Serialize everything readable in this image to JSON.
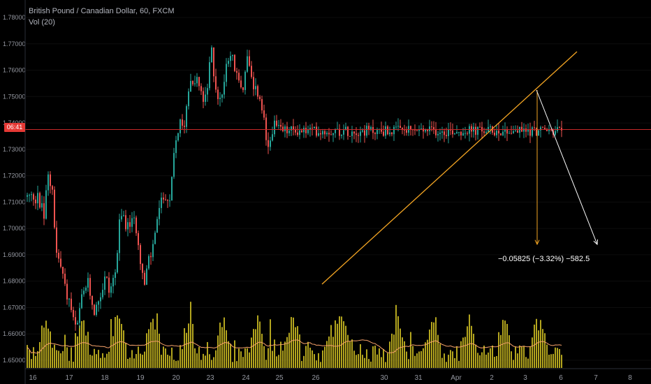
{
  "legend": {
    "symbol_line": "British Pound / Canadian Dollar, 60, FXCM",
    "volume_label": "Vol (20)"
  },
  "price_tag": "06:41",
  "measure_label": "−0.05825 (−3.32%) −582.5",
  "colors": {
    "background": "#000000",
    "up_candle": "#26a69a",
    "down_candle": "#ef5350",
    "volume_bar": "#b3a51e",
    "volume_ma": "#f7a26a",
    "trendline": "#f5a623",
    "price_line": "#c62828",
    "projection": "#ffffff",
    "axis_text": "#9598a1"
  },
  "chart_data": {
    "type": "candlestick",
    "instrument": "British Pound / Canadian Dollar",
    "timeframe": "60",
    "source": "FXCM",
    "y_axis": {
      "ticks": [
        "1.78000",
        "1.77000",
        "1.76000",
        "1.75000",
        "1.74000",
        "1.73000",
        "1.72000",
        "1.71000",
        "1.70000",
        "1.69000",
        "1.68000",
        "1.67000",
        "1.66000",
        "1.65000"
      ],
      "range": [
        1.648,
        1.783
      ]
    },
    "x_axis": {
      "ticks": [
        "16",
        "17",
        "18",
        "19",
        "20",
        "23",
        "24",
        "25",
        "26",
        "30",
        "31",
        "Apr",
        "2",
        "3",
        "6",
        "7",
        "8"
      ]
    },
    "current_price": 1.7375,
    "price_path": [
      [
        0,
        1.712
      ],
      [
        0.03,
        1.7
      ],
      [
        0.06,
        1.712
      ],
      [
        0.1,
        1.715
      ],
      [
        0.13,
        1.713
      ],
      [
        0.16,
        1.706
      ],
      [
        0.2,
        1.708
      ],
      [
        0.24,
        1.71
      ],
      [
        0.28,
        1.705
      ],
      [
        0.32,
        1.7
      ],
      [
        0.35,
        1.715
      ],
      [
        0.4,
        1.72
      ],
      [
        0.45,
        1.716
      ],
      [
        0.5,
        1.718
      ],
      [
        0.55,
        1.712
      ],
      [
        0.6,
        1.692
      ],
      [
        0.65,
        1.69
      ],
      [
        0.7,
        1.688
      ],
      [
        0.8,
        1.683
      ],
      [
        0.9,
        1.675
      ],
      [
        1.0,
        1.672
      ],
      [
        1.1,
        1.665
      ],
      [
        1.2,
        1.661
      ],
      [
        1.3,
        1.672
      ],
      [
        1.4,
        1.676
      ],
      [
        1.5,
        1.68
      ],
      [
        1.6,
        1.673
      ],
      [
        1.7,
        1.668
      ],
      [
        1.8,
        1.673
      ],
      [
        1.9,
        1.676
      ],
      [
        2.0,
        1.683
      ],
      [
        2.1,
        1.676
      ],
      [
        2.2,
        1.68
      ],
      [
        2.3,
        1.685
      ],
      [
        2.4,
        1.703
      ],
      [
        2.5,
        1.705
      ],
      [
        2.6,
        1.7
      ],
      [
        2.7,
        1.702
      ],
      [
        2.8,
        1.703
      ],
      [
        2.9,
        1.698
      ],
      [
        3.0,
        1.686
      ],
      [
        3.1,
        1.678
      ],
      [
        3.2,
        1.688
      ],
      [
        3.3,
        1.69
      ],
      [
        3.4,
        1.7
      ],
      [
        3.5,
        1.707
      ],
      [
        3.6,
        1.711
      ],
      [
        3.7,
        1.713
      ],
      [
        3.8,
        1.708
      ],
      [
        3.9,
        1.725
      ],
      [
        4.0,
        1.735
      ],
      [
        4.1,
        1.74
      ],
      [
        4.2,
        1.737
      ],
      [
        4.3,
        1.748
      ],
      [
        4.4,
        1.758
      ],
      [
        4.5,
        1.755
      ],
      [
        4.6,
        1.757
      ],
      [
        4.7,
        1.751
      ],
      [
        4.8,
        1.748
      ],
      [
        4.9,
        1.752
      ],
      [
        5.0,
        1.77
      ],
      [
        5.1,
        1.756
      ],
      [
        5.2,
        1.75
      ],
      [
        5.3,
        1.748
      ],
      [
        5.4,
        1.761
      ],
      [
        5.5,
        1.766
      ],
      [
        5.6,
        1.765
      ],
      [
        5.7,
        1.758
      ],
      [
        5.8,
        1.756
      ],
      [
        5.9,
        1.752
      ],
      [
        6.0,
        1.766
      ],
      [
        6.1,
        1.76
      ],
      [
        6.2,
        1.751
      ],
      [
        6.3,
        1.753
      ],
      [
        6.4,
        1.748
      ],
      [
        6.5,
        1.743
      ],
      [
        6.6,
        1.73
      ],
      [
        6.7,
        1.732
      ],
      [
        6.8,
        1.74
      ],
      [
        6.9,
        1.738
      ],
      [
        7.0,
        1.737
      ]
    ],
    "volume_ma_level_range": [
      0.55,
      0.75
    ],
    "annotations": [
      {
        "type": "trendline",
        "from": [
          "26",
          1.677
        ],
        "to": [
          "after 6",
          1.766
        ]
      },
      {
        "type": "horizontal_line",
        "price": 1.7375
      },
      {
        "type": "arrow",
        "from": [
          "3",
          1.75
        ],
        "to": [
          "3",
          1.6935
        ]
      },
      {
        "type": "arrow",
        "from": [
          "3",
          1.752
        ],
        "to": [
          "7",
          1.6935
        ]
      },
      {
        "type": "measure_text",
        "text": "−0.05825 (−3.32%) −582.5"
      }
    ]
  }
}
